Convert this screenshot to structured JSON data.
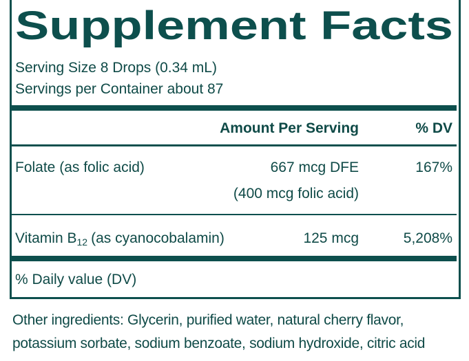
{
  "title": "Supplement Facts",
  "serving_size": "Serving Size 8 Drops (0.34 mL)",
  "servings_per_container": "Servings per Container about 87",
  "table": {
    "header": [
      "Amount Per Serving",
      "% DV"
    ],
    "rows": [
      {
        "name": "Folate (as folic acid)",
        "amount": [
          "667 mcg DFE",
          "(400 mcg folic acid)"
        ],
        "dv": "167%"
      },
      {
        "name_parts": [
          "Vitamin B",
          "12",
          "(as cyanocobalamin)"
        ],
        "amount": [
          "125 mcg"
        ],
        "dv": "5,208%"
      }
    ]
  },
  "footnote": "% Daily value (DV)",
  "other_ingredients": [
    "Other ingredients: Glycerin, purified water, natural cherry flavor,",
    "potassium sorbate, sodium benzoate, sodium hydroxide, citric acid"
  ]
}
